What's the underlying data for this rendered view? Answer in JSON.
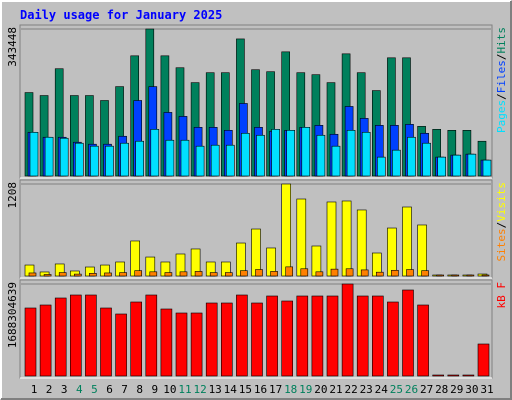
{
  "chart_data": [
    {
      "type": "bar",
      "title": "Daily usage for January 2025",
      "categories": [
        "1",
        "2",
        "3",
        "4",
        "5",
        "6",
        "7",
        "8",
        "9",
        "10",
        "11",
        "12",
        "13",
        "14",
        "15",
        "16",
        "17",
        "18",
        "19",
        "20",
        "21",
        "22",
        "23",
        "24",
        "25",
        "26",
        "27",
        "28",
        "29",
        "30",
        "31"
      ],
      "legend_separator": "/",
      "ylim": [
        0,
        343448
      ],
      "yticks": [
        343448
      ],
      "series": [
        {
          "name": "Hits",
          "color": "#00805c",
          "values": [
            194930,
            187970,
            250620,
            187970,
            187970,
            176360,
            208850,
            280790,
            343448,
            280790,
            252940,
            218130,
            241340,
            241340,
            320240,
            248300,
            243660,
            290070,
            241340,
            236700,
            218130,
            285430,
            241340,
            199570,
            276150,
            276150,
            116030,
            109070,
            106750,
            106750,
            81220
          ]
        },
        {
          "name": "Files",
          "color": "#0040ff",
          "values": [
            102120,
            90520,
            90520,
            78910,
            74270,
            74270,
            92840,
            176400,
            208890,
            148540,
            139260,
            113730,
            113730,
            106770,
            169430,
            113730,
            104450,
            106770,
            113730,
            118370,
            97480,
            162470,
            134620,
            118370,
            118370,
            120690,
            99800,
            44100,
            48740,
            51060,
            37140
          ]
        },
        {
          "name": "Pages",
          "color": "#00e0ff",
          "values": [
            102120,
            90520,
            88200,
            76590,
            69630,
            69630,
            76590,
            81240,
            109090,
            83560,
            83560,
            69630,
            71950,
            71950,
            99800,
            95160,
            109090,
            106770,
            113730,
            95160,
            69630,
            106770,
            102120,
            44100,
            60350,
            90520,
            76590,
            44100,
            48740,
            51060,
            37140
          ]
        }
      ]
    },
    {
      "type": "bar",
      "categories": [
        "1",
        "2",
        "3",
        "4",
        "5",
        "6",
        "7",
        "8",
        "9",
        "10",
        "11",
        "12",
        "13",
        "14",
        "15",
        "16",
        "17",
        "18",
        "19",
        "20",
        "21",
        "22",
        "23",
        "24",
        "25",
        "26",
        "27",
        "28",
        "29",
        "30",
        "31"
      ],
      "legend_separator": "/",
      "ylim": [
        0,
        1208
      ],
      "yticks": [
        1208
      ],
      "series": [
        {
          "name": "Visits",
          "color": "#ffff00",
          "values": [
            144,
            53,
            158,
            66,
            118,
            144,
            184,
            460,
            249,
            184,
            289,
            355,
            184,
            184,
            433,
            617,
            368,
            1208,
            1011,
            394,
            972,
            985,
            867,
            302,
            630,
            906,
            670,
            13,
            13,
            13,
            26
          ]
        },
        {
          "name": "Sites",
          "color": "#ff8000",
          "values": [
            40,
            20,
            45,
            25,
            35,
            40,
            45,
            70,
            55,
            45,
            55,
            60,
            45,
            45,
            70,
            85,
            60,
            120,
            95,
            55,
            90,
            95,
            80,
            50,
            75,
            85,
            70,
            5,
            5,
            5,
            10
          ]
        }
      ]
    },
    {
      "type": "bar",
      "categories": [
        "1",
        "2",
        "3",
        "4",
        "5",
        "6",
        "7",
        "8",
        "9",
        "10",
        "11",
        "12",
        "13",
        "14",
        "15",
        "16",
        "17",
        "18",
        "19",
        "20",
        "21",
        "22",
        "23",
        "24",
        "25",
        "26",
        "27",
        "28",
        "29",
        "30",
        "31"
      ],
      "category_colors": [
        "#000000",
        "#000000",
        "#000000",
        "#00805c",
        "#00805c",
        "#000000",
        "#000000",
        "#000000",
        "#000000",
        "#000000",
        "#00805c",
        "#00805c",
        "#000000",
        "#000000",
        "#000000",
        "#000000",
        "#000000",
        "#00805c",
        "#00805c",
        "#000000",
        "#000000",
        "#000000",
        "#000000",
        "#000000",
        "#00805c",
        "#00805c",
        "#000000",
        "#000000",
        "#000000",
        "#000000",
        "#000000"
      ],
      "legend_label": "kB F",
      "ylim": [
        0,
        1688304639
      ],
      "yticks": [
        1688304639
      ],
      "series": [
        {
          "name": "kB F",
          "color": "#ff0000",
          "values": [
            1247877300,
            1302930700,
            1431388700,
            1486442100,
            1486442100,
            1247877300,
            1137770500,
            1357984100,
            1486442100,
            1229526200,
            1156121600,
            1156121600,
            1339633000,
            1339633000,
            1486442100,
            1339633000,
            1468091000,
            1376335300,
            1468091000,
            1468091000,
            1468091000,
            1688304639,
            1468091000,
            1468091000,
            1357984100,
            1578197800,
            1302930700,
            0,
            0,
            0,
            587236400
          ]
        }
      ]
    }
  ]
}
